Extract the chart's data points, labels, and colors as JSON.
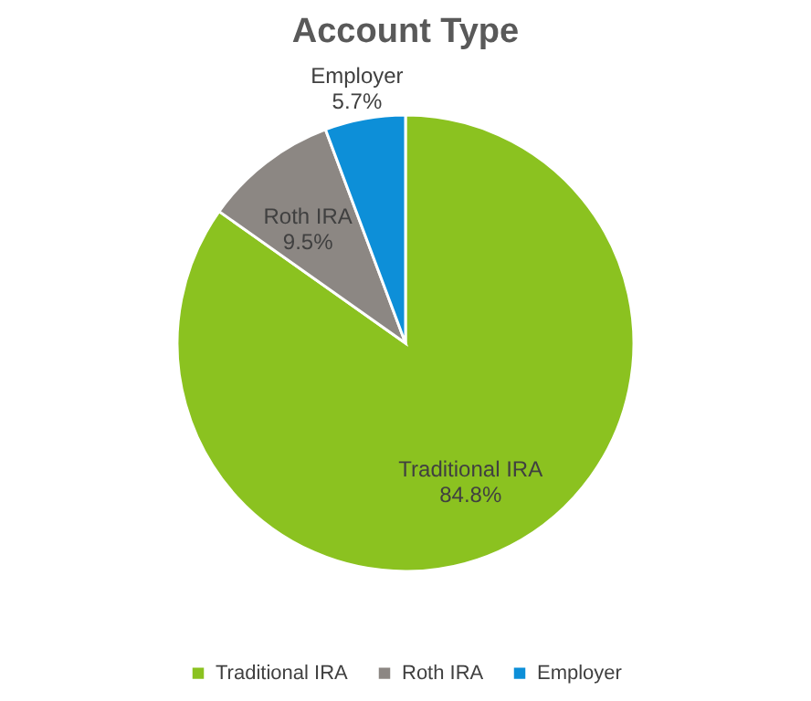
{
  "chart_data": {
    "type": "pie",
    "title": "Account Type",
    "categories": [
      "Traditional IRA",
      "Roth IRA",
      "Employer"
    ],
    "values": [
      84.8,
      9.5,
      5.7
    ],
    "value_labels": [
      "84.8%",
      "9.5%",
      "5.7%"
    ],
    "colors": [
      "#8bc220",
      "#8c8783",
      "#0d8fd8"
    ],
    "legend": "bottom"
  }
}
